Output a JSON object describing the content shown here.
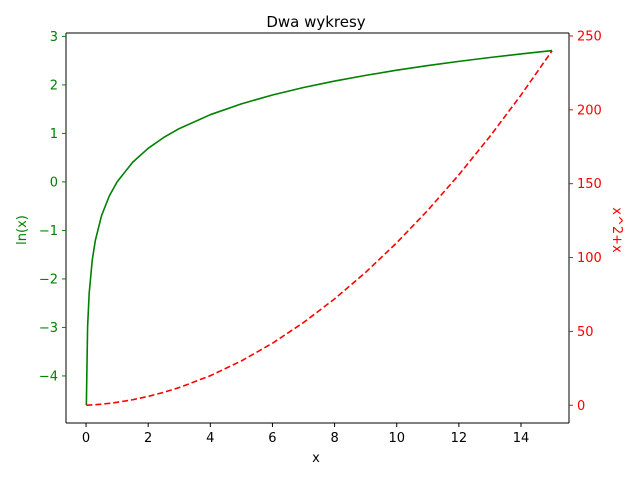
{
  "chart_data": {
    "type": "line",
    "title": "Dwa wykresy",
    "xlabel": "x",
    "xlim": [
      -0.645,
      15.545
    ],
    "x_ticks": [
      0,
      2,
      4,
      6,
      8,
      10,
      12,
      14
    ],
    "x": [
      0.01,
      0.05,
      0.1,
      0.2,
      0.3,
      0.5,
      0.75,
      1,
      1.5,
      2,
      2.5,
      3,
      4,
      5,
      6,
      7,
      8,
      9,
      10,
      11,
      12,
      13,
      14,
      15
    ],
    "grid": false,
    "legend": "none",
    "axes": [
      {
        "side": "left",
        "label": "ln(x)",
        "color": "#008000",
        "ylim": [
          -4.97,
          3.07
        ],
        "ticks": [
          -4,
          -3,
          -2,
          -1,
          0,
          1,
          2,
          3
        ],
        "tick_labels": [
          "−4",
          "−3",
          "−2",
          "−1",
          "0",
          "1",
          "2",
          "3"
        ]
      },
      {
        "side": "right",
        "label": "x^2+x",
        "color": "#ff0000",
        "ylim": [
          -12,
          252
        ],
        "ticks": [
          0,
          50,
          100,
          150,
          200,
          250
        ],
        "tick_labels": [
          "0",
          "50",
          "100",
          "150",
          "200",
          "250"
        ]
      }
    ],
    "series": [
      {
        "axis": 0,
        "color": "#008000",
        "style": "solid",
        "y": [
          -4.605,
          -2.996,
          -2.303,
          -1.609,
          -1.204,
          -0.693,
          -0.288,
          0,
          0.405,
          0.693,
          0.916,
          1.099,
          1.386,
          1.609,
          1.792,
          1.946,
          2.079,
          2.197,
          2.303,
          2.398,
          2.485,
          2.565,
          2.639,
          2.708
        ]
      },
      {
        "axis": 1,
        "color": "#ff0000",
        "style": "dashed",
        "y": [
          0.01,
          0.053,
          0.11,
          0.24,
          0.39,
          0.75,
          1.31,
          2,
          3.75,
          6,
          8.75,
          12,
          20,
          30,
          42,
          56,
          72,
          90,
          110,
          132,
          156,
          182,
          210,
          240
        ]
      }
    ]
  }
}
